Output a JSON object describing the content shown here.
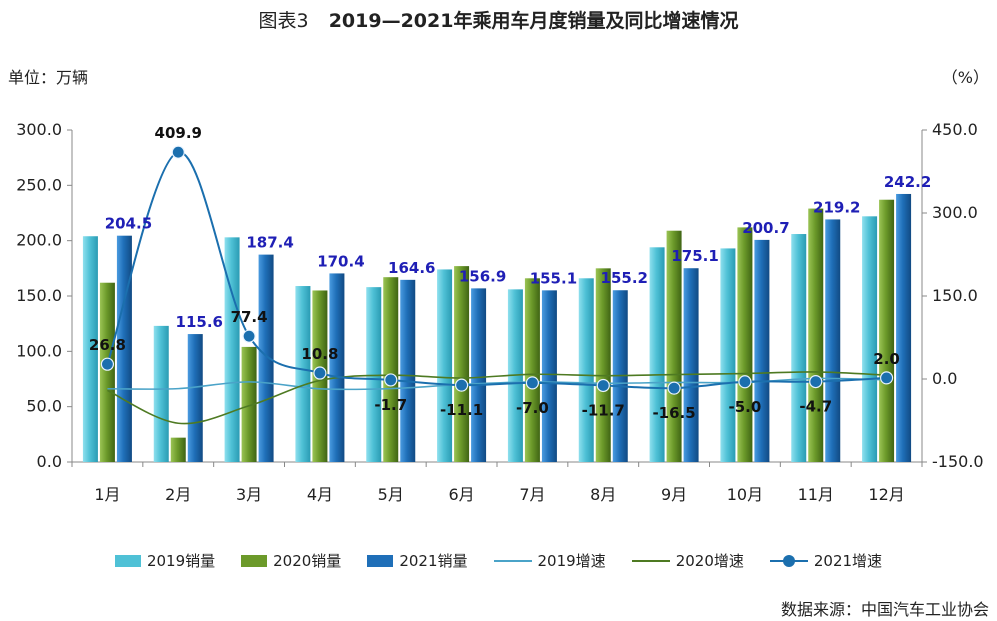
{
  "title": {
    "figure_no": "图表3",
    "text": "2019—2021年乘用车月度销量及同比增速情况"
  },
  "unit_left": "单位：万辆",
  "unit_right": "（%）",
  "source": "数据来源：中国汽车工业协会",
  "colors": {
    "bar2019": "#4fc1d6",
    "bar2020": "#6c9a2a",
    "bar2021": "#1f6fb8",
    "line2019": "#4aa3c8",
    "line2020": "#4e7a22",
    "line2021": "#1b6fae",
    "label2021": "#1f1fb5"
  },
  "chart_data": {
    "type": "bar+line",
    "categories": [
      "1月",
      "2月",
      "3月",
      "4月",
      "5月",
      "6月",
      "7月",
      "8月",
      "9月",
      "10月",
      "11月",
      "12月"
    ],
    "y_left": {
      "min": 0,
      "max": 300,
      "ticks": [
        "0.0",
        "50.0",
        "100.0",
        "150.0",
        "200.0",
        "250.0",
        "300.0"
      ]
    },
    "y_right": {
      "min": -150,
      "max": 450,
      "ticks": [
        "-150.0",
        "0.0",
        "150.0",
        "300.0",
        "450.0"
      ]
    },
    "bar_series": [
      {
        "name": "2019销量",
        "values": [
          204,
          123,
          203,
          159,
          158,
          174,
          156,
          166,
          194,
          193,
          206,
          222
        ]
      },
      {
        "name": "2020销量",
        "values": [
          162,
          22,
          104,
          155,
          167,
          177,
          166,
          175,
          209,
          212,
          229,
          237
        ]
      },
      {
        "name": "2021销量",
        "values": [
          204.5,
          115.6,
          187.4,
          170.4,
          164.6,
          156.9,
          155.1,
          155.2,
          175.1,
          200.7,
          219.2,
          242.2
        ]
      }
    ],
    "line_series": [
      {
        "name": "2019增速",
        "values": [
          -17.6,
          -17.4,
          -5.2,
          -17.7,
          -17.4,
          -9.9,
          -5.3,
          -7.7,
          -6.3,
          -6.2,
          1.0,
          -1.6
        ]
      },
      {
        "name": "2020增速",
        "values": [
          -20.6,
          -80.0,
          -48.4,
          -2.6,
          6.9,
          1.8,
          8.5,
          6.0,
          8.0,
          9.9,
          12.7,
          7.0
        ]
      },
      {
        "name": "2021增速",
        "values": [
          26.8,
          409.9,
          77.4,
          10.8,
          -1.7,
          -11.1,
          -7.0,
          -11.7,
          -16.5,
          -5.0,
          -4.7,
          2.0
        ]
      }
    ],
    "labels_2021_sales": [
      "204.5",
      "115.6",
      "187.4",
      "170.4",
      "164.6",
      "156.9",
      "155.1",
      "155.2",
      "175.1",
      "200.7",
      "219.2",
      "242.2"
    ],
    "labels_2021_growth": [
      "26.8",
      "409.9",
      "77.4",
      "10.8",
      "-1.7",
      "-11.1",
      "-7.0",
      "-11.7",
      "-16.5",
      "-5.0",
      "-4.7",
      "2.0"
    ],
    "legend_position": "bottom"
  },
  "legend": [
    {
      "label": "2019销量",
      "kind": "bar",
      "color": "#4fc1d6"
    },
    {
      "label": "2020销量",
      "kind": "bar",
      "color": "#6c9a2a"
    },
    {
      "label": "2021销量",
      "kind": "bar",
      "color": "#1f6fb8"
    },
    {
      "label": "2019增速",
      "kind": "line",
      "color": "#4aa3c8"
    },
    {
      "label": "2020增速",
      "kind": "line",
      "color": "#4e7a22"
    },
    {
      "label": "2021增速",
      "kind": "line-dot",
      "color": "#1b6fae"
    }
  ]
}
